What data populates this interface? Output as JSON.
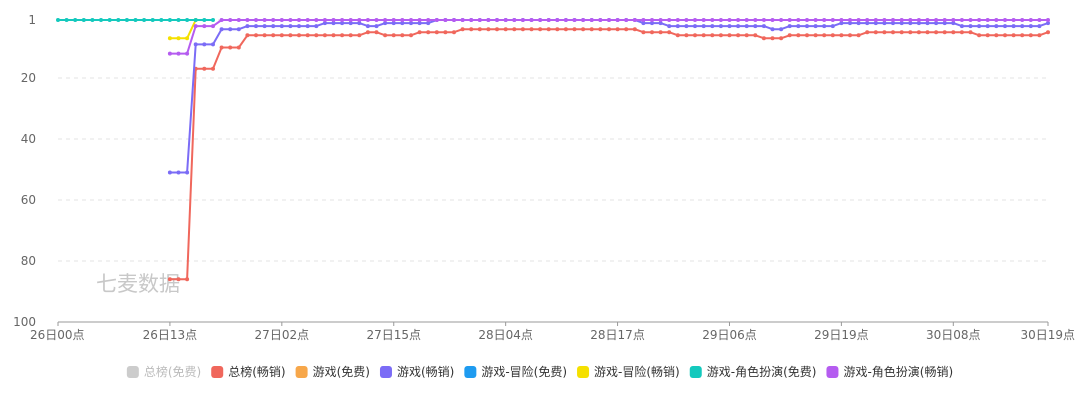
{
  "watermark": "七麦数据",
  "chart_data": {
    "type": "line",
    "title": "",
    "xlabel": "",
    "ylabel": "",
    "y_inverted": true,
    "ylim": [
      1,
      100
    ],
    "yticks": [
      1,
      20,
      40,
      60,
      80,
      100
    ],
    "x_range_hours": [
      0,
      115
    ],
    "x_step_hours": 1,
    "xticks": [
      {
        "h": 0,
        "label": "26日00点"
      },
      {
        "h": 13,
        "label": "26日13点"
      },
      {
        "h": 26,
        "label": "27日02点"
      },
      {
        "h": 39,
        "label": "27日15点"
      },
      {
        "h": 52,
        "label": "28日04点"
      },
      {
        "h": 65,
        "label": "28日17点"
      },
      {
        "h": 78,
        "label": "29日06点"
      },
      {
        "h": 91,
        "label": "29日19点"
      },
      {
        "h": 104,
        "label": "30日08点"
      },
      {
        "h": 115,
        "label": "30日19点"
      }
    ],
    "legend_position": "bottom",
    "series": [
      {
        "name": "总榜(免费)",
        "color": "#c8c8c8",
        "active": false,
        "segments": []
      },
      {
        "name": "总榜(畅销)",
        "color": "#f0675c",
        "active": true,
        "segments": [
          [
            [
              13,
              86
            ],
            [
              14,
              86
            ],
            [
              15,
              86
            ],
            [
              16,
              17
            ],
            [
              17,
              17
            ],
            [
              18,
              17
            ],
            [
              19,
              10
            ],
            [
              20,
              10
            ],
            [
              21,
              10
            ],
            [
              22,
              6
            ],
            [
              35,
              6
            ],
            [
              36,
              5
            ],
            [
              37,
              5
            ],
            [
              38,
              6
            ],
            [
              41,
              6
            ],
            [
              42,
              5
            ],
            [
              46,
              5
            ],
            [
              47,
              4
            ],
            [
              67,
              4
            ],
            [
              68,
              5
            ],
            [
              71,
              5
            ],
            [
              72,
              6
            ],
            [
              81,
              6
            ],
            [
              82,
              7
            ],
            [
              84,
              7
            ],
            [
              85,
              6
            ],
            [
              93,
              6
            ],
            [
              94,
              5
            ],
            [
              106,
              5
            ],
            [
              107,
              6
            ],
            [
              114,
              6
            ],
            [
              115,
              5
            ]
          ]
        ]
      },
      {
        "name": "游戏(免费)",
        "color": "#f7a74a",
        "active": true,
        "segments": []
      },
      {
        "name": "游戏(畅销)",
        "color": "#7b6cf6",
        "active": true,
        "segments": [
          [
            [
              13,
              51
            ],
            [
              14,
              51
            ],
            [
              15,
              51
            ],
            [
              16,
              9
            ],
            [
              17,
              9
            ],
            [
              18,
              9
            ],
            [
              19,
              4
            ],
            [
              20,
              4
            ],
            [
              21,
              4
            ],
            [
              22,
              3
            ],
            [
              30,
              3
            ],
            [
              31,
              2
            ],
            [
              35,
              2
            ],
            [
              36,
              3
            ],
            [
              37,
              3
            ],
            [
              38,
              2
            ],
            [
              43,
              2
            ],
            [
              44,
              1
            ],
            [
              67,
              1
            ],
            [
              68,
              2
            ],
            [
              70,
              2
            ],
            [
              71,
              3
            ],
            [
              82,
              3
            ],
            [
              83,
              4
            ],
            [
              84,
              4
            ],
            [
              85,
              3
            ],
            [
              90,
              3
            ],
            [
              91,
              2
            ],
            [
              104,
              2
            ],
            [
              105,
              3
            ],
            [
              114,
              3
            ],
            [
              115,
              2
            ]
          ]
        ]
      },
      {
        "name": "游戏-冒险(免费)",
        "color": "#1e9bf0",
        "active": true,
        "segments": []
      },
      {
        "name": "游戏-冒险(畅销)",
        "color": "#f5e000",
        "active": true,
        "segments": [
          [
            [
              13,
              7
            ],
            [
              14,
              7
            ],
            [
              15,
              7
            ],
            [
              16,
              1
            ]
          ]
        ]
      },
      {
        "name": "游戏-角色扮演(免费)",
        "color": "#14c9bd",
        "active": true,
        "segments": [
          [
            [
              0,
              1
            ],
            [
              18,
              1
            ]
          ]
        ]
      },
      {
        "name": "游戏-角色扮演(畅销)",
        "color": "#b55cf0",
        "active": true,
        "segments": [
          [
            [
              13,
              12
            ],
            [
              14,
              12
            ],
            [
              15,
              12
            ],
            [
              16,
              3
            ],
            [
              17,
              3
            ],
            [
              18,
              3
            ],
            [
              19,
              1
            ],
            [
              115,
              1
            ]
          ]
        ]
      }
    ]
  }
}
